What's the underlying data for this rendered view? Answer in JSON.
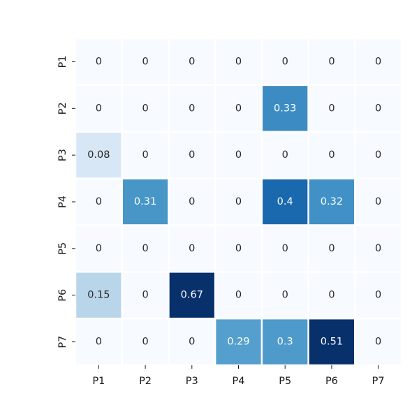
{
  "chart_data": {
    "type": "heatmap",
    "title": "",
    "xlabel": "",
    "ylabel": "",
    "x_categories": [
      "P1",
      "P2",
      "P3",
      "P4",
      "P5",
      "P6",
      "P7"
    ],
    "y_categories": [
      "P1",
      "P2",
      "P3",
      "P4",
      "P5",
      "P6",
      "P7"
    ],
    "values": [
      [
        0,
        0,
        0,
        0,
        0,
        0,
        0
      ],
      [
        0,
        0,
        0,
        0,
        0.33,
        0,
        0
      ],
      [
        0.08,
        0,
        0,
        0,
        0,
        0,
        0
      ],
      [
        0,
        0.31,
        0,
        0,
        0.4,
        0.32,
        0
      ],
      [
        0,
        0,
        0,
        0,
        0,
        0,
        0
      ],
      [
        0.15,
        0,
        0.67,
        0,
        0,
        0,
        0
      ],
      [
        0,
        0,
        0,
        0.29,
        0.3,
        0.51,
        0
      ]
    ],
    "value_labels": [
      [
        "0",
        "0",
        "0",
        "0",
        "0",
        "0",
        "0"
      ],
      [
        "0",
        "0",
        "0",
        "0",
        "0.33",
        "0",
        "0"
      ],
      [
        "0.08",
        "0",
        "0",
        "0",
        "0",
        "0",
        "0"
      ],
      [
        "0",
        "0.31",
        "0",
        "0",
        "0.4",
        "0.32",
        "0"
      ],
      [
        "0",
        "0",
        "0",
        "0",
        "0",
        "0",
        "0"
      ],
      [
        "0.15",
        "0",
        "0.67",
        "0",
        "0",
        "0",
        "0"
      ],
      [
        "0",
        "0",
        "0",
        "0.29",
        "0.3",
        "0.51",
        "0"
      ]
    ],
    "colormap": "Blues",
    "vmin": 0,
    "vmax": 0.51,
    "colorbar": false,
    "annotated": true,
    "cell_border_color": "#ffffff"
  }
}
